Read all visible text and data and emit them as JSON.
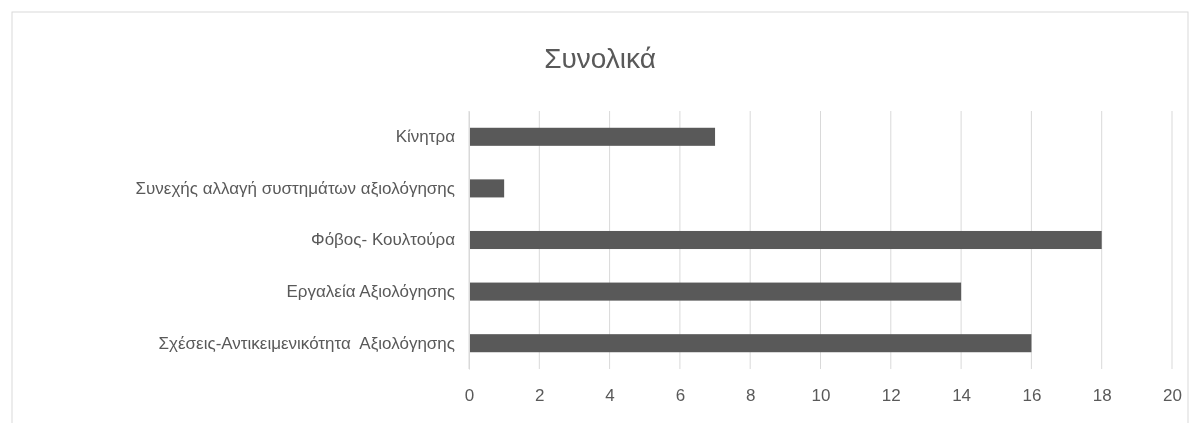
{
  "chart_data": {
    "type": "bar",
    "orientation": "horizontal",
    "title": "Συνολικά",
    "categories": [
      "Κίνητρα",
      "Συνεχής αλλαγή συστημάτων αξιολόγησης",
      "Φόβος- Κουλτούρα",
      "Εργαλεία Αξιολόγησης",
      "Σχέσεις-Αντικειμενικότητα  Αξιολόγησης"
    ],
    "values": [
      7,
      1,
      18,
      14,
      16
    ],
    "color": "#595959",
    "xlim": [
      0,
      20
    ],
    "xticks": [
      0,
      2,
      4,
      6,
      8,
      10,
      12,
      14,
      16,
      18,
      20
    ],
    "grid": "x"
  }
}
